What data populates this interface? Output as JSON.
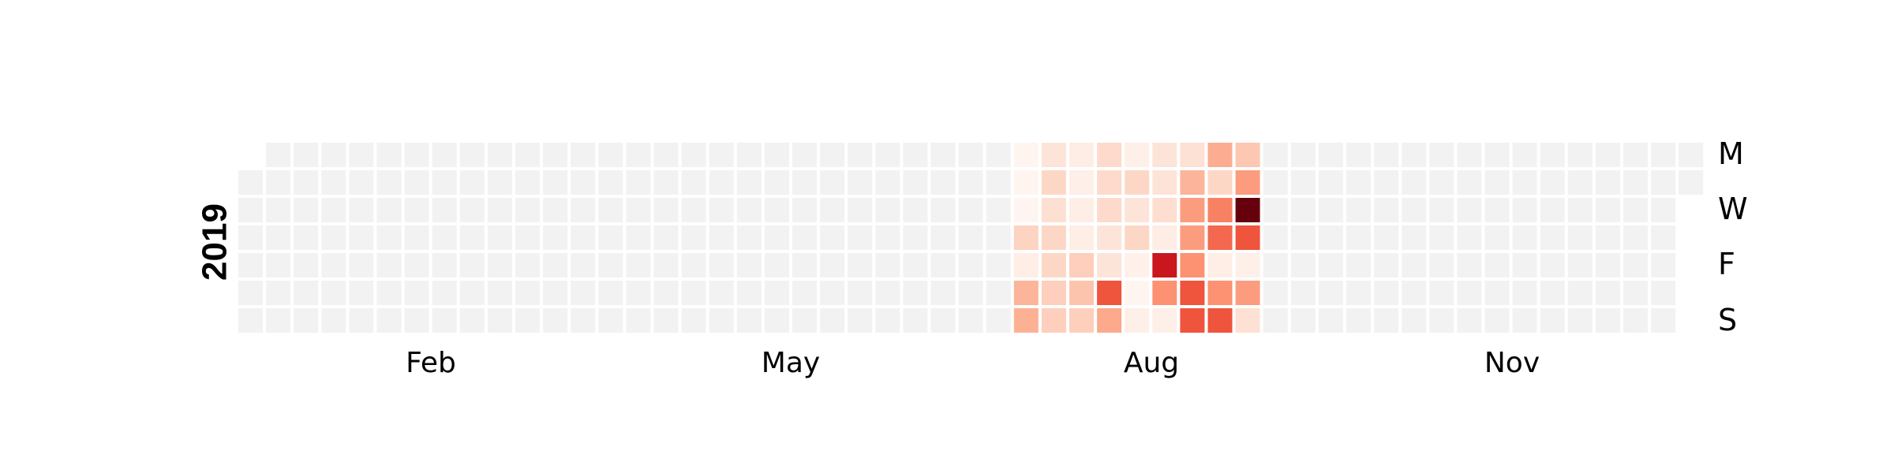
{
  "chart_data": {
    "type": "heatmap",
    "title": "",
    "year_label": "2019",
    "xlabel": "",
    "ylabel": "",
    "x_tick_labels": [
      "Feb",
      "May",
      "Aug",
      "Nov"
    ],
    "y_tick_labels": [
      "M",
      "W",
      "F",
      "S"
    ],
    "weekday_order": [
      "Mon",
      "Tue",
      "Wed",
      "Thu",
      "Fri",
      "Sat",
      "Sun"
    ],
    "week_count": 53,
    "first_week_start_row": 1,
    "last_week_end_row": 1,
    "empty_color": "#f2f2f2",
    "colormap": "Reds",
    "data_weeks": [
      {
        "week": 28,
        "levels": [
          0,
          0,
          0,
          0.22,
          0.05,
          0.38,
          0.4
        ]
      },
      {
        "week": 29,
        "levels": [
          0.12,
          0.2,
          0.15,
          0.2,
          0.2,
          0.24,
          0.24
        ]
      },
      {
        "week": 30,
        "levels": [
          0.06,
          0.04,
          0.05,
          0.05,
          0.24,
          0.3,
          0.24
        ]
      },
      {
        "week": 31,
        "levels": [
          0.18,
          0.18,
          0.18,
          0.12,
          0.12,
          0.8,
          0.44
        ]
      },
      {
        "week": 32,
        "levels": [
          0.04,
          0.2,
          0.12,
          0.2,
          0.03,
          0.0,
          0.04
        ]
      },
      {
        "week": 33,
        "levels": [
          0.12,
          0.12,
          0.16,
          0.06,
          1.22,
          0.55,
          0.04
        ]
      },
      {
        "week": 34,
        "levels": [
          0.14,
          0.38,
          0.5,
          0.5,
          0.55,
          0.8,
          0.8
        ]
      },
      {
        "week": 35,
        "levels": [
          0.42,
          0.2,
          0.62,
          0.72,
          0.05,
          0.55,
          0.8
        ]
      },
      {
        "week": 36,
        "levels": [
          0.28,
          0.5,
          2.0,
          0.8,
          0.04,
          0.5,
          0.14
        ]
      }
    ]
  }
}
